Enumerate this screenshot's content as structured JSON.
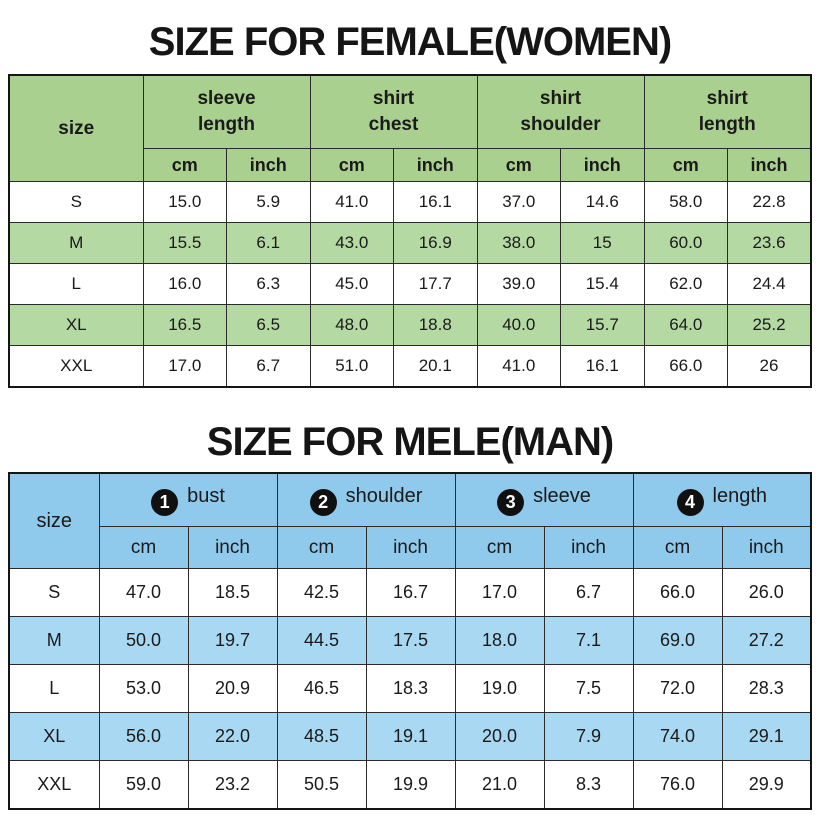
{
  "female": {
    "title": "SIZE FOR FEMALE(WOMEN)",
    "size_label": "size",
    "unit_cm": "cm",
    "unit_inch": "inch",
    "groups": [
      {
        "line1": "sleeve",
        "line2": "length"
      },
      {
        "line1": "shirt",
        "line2": "chest"
      },
      {
        "line1": "shirt",
        "line2": "shoulder"
      },
      {
        "line1": "shirt",
        "line2": "length"
      }
    ],
    "rows": [
      {
        "size": "S",
        "values": [
          "15.0",
          "5.9",
          "41.0",
          "16.1",
          "37.0",
          "14.6",
          "58.0",
          "22.8"
        ]
      },
      {
        "size": "M",
        "values": [
          "15.5",
          "6.1",
          "43.0",
          "16.9",
          "38.0",
          "15",
          "60.0",
          "23.6"
        ]
      },
      {
        "size": "L",
        "values": [
          "16.0",
          "6.3",
          "45.0",
          "17.7",
          "39.0",
          "15.4",
          "62.0",
          "24.4"
        ]
      },
      {
        "size": "XL",
        "values": [
          "16.5",
          "6.5",
          "48.0",
          "18.8",
          "40.0",
          "15.7",
          "64.0",
          "25.2"
        ]
      },
      {
        "size": "XXL",
        "values": [
          "17.0",
          "6.7",
          "51.0",
          "20.1",
          "41.0",
          "16.1",
          "66.0",
          "26"
        ]
      }
    ],
    "header_color": "#a9d08e",
    "stripe_color": "#b5d9a2"
  },
  "male": {
    "title": "SIZE FOR MELE(MAN)",
    "size_label": "size",
    "unit_cm": "cm",
    "unit_inch": "inch",
    "groups": [
      {
        "num": "1",
        "label": "bust"
      },
      {
        "num": "2",
        "label": "shoulder"
      },
      {
        "num": "3",
        "label": "sleeve"
      },
      {
        "num": "4",
        "label": "length"
      }
    ],
    "rows": [
      {
        "size": "S",
        "values": [
          "47.0",
          "18.5",
          "42.5",
          "16.7",
          "17.0",
          "6.7",
          "66.0",
          "26.0"
        ]
      },
      {
        "size": "M",
        "values": [
          "50.0",
          "19.7",
          "44.5",
          "17.5",
          "18.0",
          "7.1",
          "69.0",
          "27.2"
        ]
      },
      {
        "size": "L",
        "values": [
          "53.0",
          "20.9",
          "46.5",
          "18.3",
          "19.0",
          "7.5",
          "72.0",
          "28.3"
        ]
      },
      {
        "size": "XL",
        "values": [
          "56.0",
          "22.0",
          "48.5",
          "19.1",
          "20.0",
          "7.9",
          "74.0",
          "29.1"
        ]
      },
      {
        "size": "XXL",
        "values": [
          "59.0",
          "23.2",
          "50.5",
          "19.9",
          "21.0",
          "8.3",
          "76.0",
          "29.9"
        ]
      }
    ],
    "header_color": "#8fc9ec",
    "stripe_color": "#a8d8f2"
  }
}
